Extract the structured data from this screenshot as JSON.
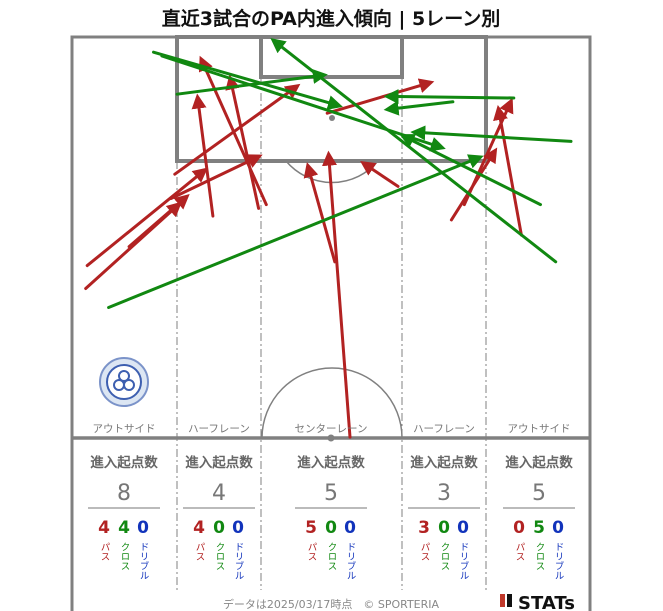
{
  "title": "直近3試合のPA内進入傾向 | 5レーン別",
  "colors": {
    "pass": "#b22222",
    "cross": "#118811",
    "dribble": "#1133bb",
    "pitch_line": "#808080",
    "stat_label": "#666666"
  },
  "lanes": [
    {
      "label": "アウトサイド",
      "stat_title": "進入起点数",
      "total": "8",
      "pass": "4",
      "cross": "4",
      "dribble": "0"
    },
    {
      "label": "ハーフレーン",
      "stat_title": "進入起点数",
      "total": "4",
      "pass": "4",
      "cross": "0",
      "dribble": "0"
    },
    {
      "label": "センターレーン",
      "stat_title": "進入起点数",
      "total": "5",
      "pass": "5",
      "cross": "0",
      "dribble": "0"
    },
    {
      "label": "ハーフレーン",
      "stat_title": "進入起点数",
      "total": "3",
      "pass": "3",
      "cross": "0",
      "dribble": "0"
    },
    {
      "label": "アウトサイド",
      "stat_title": "進入起点数",
      "total": "5",
      "pass": "0",
      "cross": "5",
      "dribble": "0"
    }
  ],
  "vertical_labels": {
    "pass": "パス",
    "cross": "クロス",
    "dribble": "ドリブル"
  },
  "footer": "データは2025/03/17時点　© SPORTERIA",
  "brand": "STATs",
  "chart_data": {
    "type": "arrow_map",
    "units": "pitch coordinates: x = 0 (left touchline) to 68 (right touchline) metres, y = metres from the attacked goal line",
    "arrows": [
      {
        "kind": "pass",
        "from": [
          1.8,
          33
        ],
        "to": [
          14,
          22
        ]
      },
      {
        "kind": "pass",
        "from": [
          2,
          30
        ],
        "to": [
          17.4,
          17.5
        ]
      },
      {
        "kind": "pass",
        "from": [
          7.5,
          27.5
        ],
        "to": [
          15,
          21
        ]
      },
      {
        "kind": "pass",
        "from": [
          13,
          21.2
        ],
        "to": [
          24.5,
          15.7
        ]
      },
      {
        "kind": "pass",
        "from": [
          18.5,
          23.5
        ],
        "to": [
          16.5,
          8
        ]
      },
      {
        "kind": "pass",
        "from": [
          24.5,
          22.5
        ],
        "to": [
          20.8,
          5.5
        ]
      },
      {
        "kind": "pass",
        "from": [
          25.5,
          22
        ],
        "to": [
          17,
          3
        ]
      },
      {
        "kind": "pass",
        "from": [
          13.5,
          18
        ],
        "to": [
          29.5,
          6.5
        ]
      },
      {
        "kind": "pass",
        "from": [
          36.5,
          52.5
        ],
        "to": [
          33.7,
          15.5
        ]
      },
      {
        "kind": "pass",
        "from": [
          34.5,
          29.5
        ],
        "to": [
          31,
          17
        ]
      },
      {
        "kind": "pass",
        "from": [
          33.5,
          10
        ],
        "to": [
          47,
          6
        ]
      },
      {
        "kind": "pass",
        "from": [
          42.8,
          19.6
        ],
        "to": [
          38.3,
          16.6
        ]
      },
      {
        "kind": "pass",
        "from": [
          49.8,
          24
        ],
        "to": [
          55.5,
          15
        ]
      },
      {
        "kind": "pass",
        "from": [
          51.5,
          22
        ],
        "to": [
          57.6,
          8.5
        ]
      },
      {
        "kind": "pass",
        "from": [
          59,
          26
        ],
        "to": [
          56,
          9.5
        ]
      },
      {
        "kind": "cross",
        "from": [
          4.8,
          35.5
        ],
        "to": [
          53.5,
          15.8
        ]
      },
      {
        "kind": "cross",
        "from": [
          13.8,
          7.5
        ],
        "to": [
          33,
          5
        ]
      },
      {
        "kind": "cross",
        "from": [
          10.7,
          2
        ],
        "to": [
          35,
          9
        ]
      },
      {
        "kind": "cross",
        "from": [
          11.8,
          2.5
        ],
        "to": [
          48.5,
          14.5
        ]
      },
      {
        "kind": "cross",
        "from": [
          50,
          8.5
        ],
        "to": [
          41.5,
          9.5
        ]
      },
      {
        "kind": "cross",
        "from": [
          58,
          8
        ],
        "to": [
          41.5,
          7.8
        ]
      },
      {
        "kind": "cross",
        "from": [
          63.5,
          29.5
        ],
        "to": [
          26.5,
          0.5
        ]
      },
      {
        "kind": "cross",
        "from": [
          65.5,
          13.7
        ],
        "to": [
          45,
          12.5
        ]
      },
      {
        "kind": "cross",
        "from": [
          61.5,
          22
        ],
        "to": [
          43.5,
          13
        ]
      }
    ]
  }
}
